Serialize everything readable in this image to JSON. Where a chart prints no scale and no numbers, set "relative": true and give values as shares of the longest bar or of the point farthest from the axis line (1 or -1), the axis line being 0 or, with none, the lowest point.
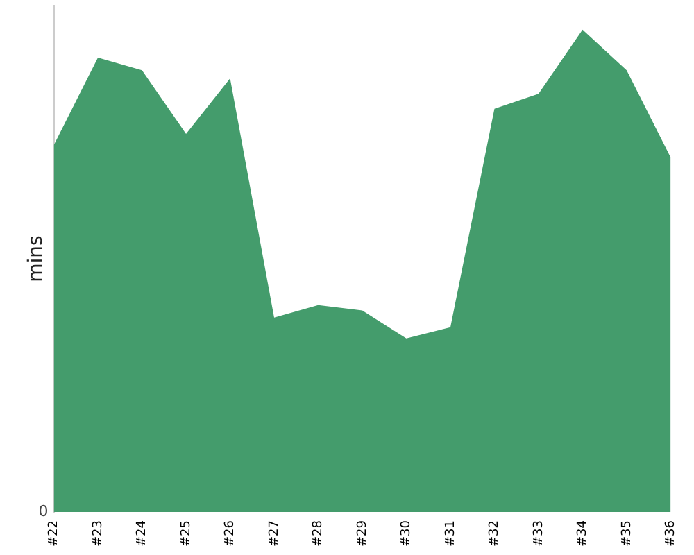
{
  "chart_data": {
    "type": "area",
    "ylabel": "mins",
    "relative": true,
    "annotations": [
      "0"
    ],
    "legend": false,
    "categories": [
      "#22",
      "#23",
      "#24",
      "#25",
      "#26",
      "#27",
      "#28",
      "#29",
      "#30",
      "#31",
      "#32",
      "#33",
      "#34",
      "#35",
      "#36"
    ],
    "series": [
      {
        "color": "#449c6c",
        "values": [
          0.761,
          0.942,
          0.916,
          0.784,
          0.899,
          0.403,
          0.429,
          0.418,
          0.36,
          0.383,
          0.836,
          0.867,
          1,
          0.916,
          0.735
        ]
      }
    ]
  }
}
